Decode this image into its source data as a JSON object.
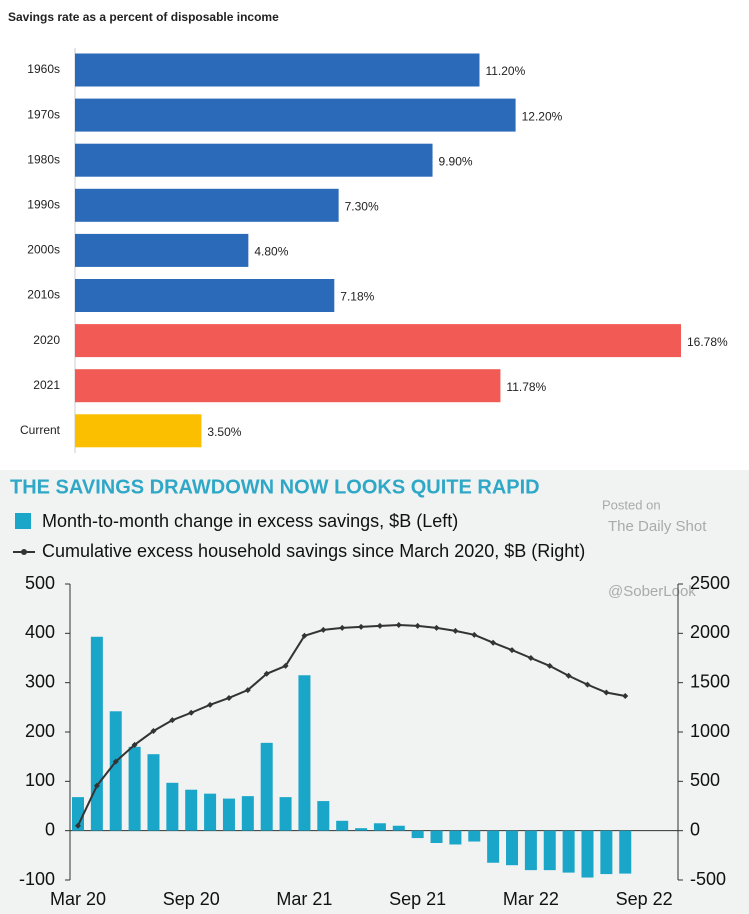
{
  "chart_data": [
    {
      "type": "hbar",
      "title": "Savings rate as a percent of disposable income",
      "categories": [
        "1960s",
        "1970s",
        "1980s",
        "1990s",
        "2000s",
        "2010s",
        "2020",
        "2021",
        "Current"
      ],
      "values": [
        11.2,
        12.2,
        9.9,
        7.3,
        4.8,
        7.18,
        16.78,
        11.78,
        3.5
      ],
      "value_labels": [
        "11.20%",
        "12.20%",
        "9.90%",
        "7.30%",
        "4.80%",
        "7.18%",
        "16.78%",
        "11.78%",
        "3.50%"
      ],
      "colors": [
        "#2a6ab8",
        "#2a6ab8",
        "#2a6ab8",
        "#2a6ab8",
        "#2a6ab8",
        "#2a6ab8",
        "#f25a55",
        "#f25a55",
        "#fbbf00"
      ]
    },
    {
      "type": "combo",
      "title": "THE SAVINGS DRAWDOWN NOW LOOKS QUITE RAPID",
      "annotations": [
        "Posted on",
        "The Daily Shot",
        "@SoberLook"
      ],
      "categories": [
        "Mar 20",
        null,
        null,
        null,
        null,
        null,
        "Sep 20",
        null,
        null,
        null,
        null,
        null,
        "Mar 21",
        null,
        null,
        null,
        null,
        null,
        "Sep 21",
        null,
        null,
        null,
        null,
        null,
        "Mar 22",
        null,
        null,
        null,
        null,
        null,
        "Sep 22"
      ],
      "series": [
        {
          "name": "Month-to-month change in excess savings, $B (Left)",
          "type": "bar",
          "color": "#1aa6c8",
          "values": [
            68,
            393,
            242,
            170,
            155,
            97,
            83,
            75,
            65,
            70,
            178,
            68,
            315,
            60,
            20,
            5,
            15,
            10,
            -15,
            -25,
            -28,
            -22,
            -65,
            -70,
            -80,
            -80,
            -85,
            -95,
            -88,
            -87,
            null
          ]
        },
        {
          "name": "Cumulative excess household savings since March 2020, $B (Right)",
          "type": "line",
          "color": "#333333",
          "axis": "y2",
          "values": [
            50,
            455,
            700,
            870,
            1010,
            1120,
            1195,
            1275,
            1345,
            1425,
            1590,
            1670,
            1975,
            2035,
            2055,
            2065,
            2075,
            2085,
            2075,
            2055,
            2025,
            1985,
            1905,
            1830,
            1750,
            1670,
            1570,
            1480,
            1400,
            1365,
            null
          ]
        }
      ],
      "ylim": [
        -100,
        500
      ],
      "yticks": [
        -100,
        0,
        100,
        200,
        300,
        400,
        500
      ],
      "y2lim": [
        -500,
        2500
      ],
      "y2ticks": [
        -500,
        0,
        500,
        1000,
        1500,
        2000,
        2500
      ]
    }
  ]
}
